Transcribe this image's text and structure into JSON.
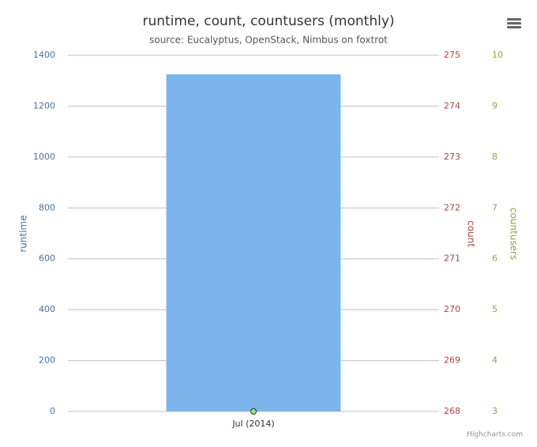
{
  "chart_data": {
    "type": "bar",
    "title": "runtime, count, countusers (monthly)",
    "subtitle": "source: Eucalyptus, OpenStack, Nimbus on foxtrot",
    "credits": "Highcharts.com",
    "categories": [
      "Jul (2014)"
    ],
    "y_label": "runtime",
    "y2_label": "count",
    "y3_label": "countusers",
    "ylim": [
      0,
      1400
    ],
    "yticks": [
      0,
      200,
      400,
      600,
      800,
      1000,
      1200,
      1400
    ],
    "y2lim": [
      268,
      275
    ],
    "y2ticks": [
      268,
      269,
      270,
      271,
      272,
      273,
      274,
      275
    ],
    "y3lim": [
      3,
      10
    ],
    "y3ticks": [
      3,
      4,
      5,
      6,
      7,
      8,
      9,
      10
    ],
    "grid": true,
    "series": [
      {
        "name": "runtime",
        "color": "#7cb5ec",
        "axis": "y",
        "kind": "bar",
        "values": [
          1325
        ]
      },
      {
        "name": "countusers",
        "color": "#90ed7d",
        "axis": "y3",
        "kind": "point",
        "values": [
          3
        ]
      }
    ]
  }
}
